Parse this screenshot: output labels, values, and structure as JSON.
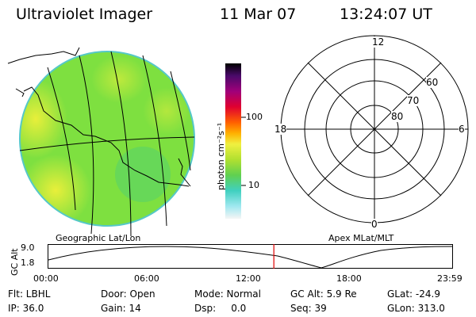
{
  "header": {
    "title": "Ultraviolet Imager",
    "date": "11 Mar 07",
    "time": "13:24:07 UT"
  },
  "colorbar": {
    "unit_label": "photon cm⁻²s⁻¹",
    "ticks": [
      "100",
      "10"
    ],
    "scale": "log"
  },
  "polar": {
    "mlt_labels": [
      "12",
      "18",
      "6",
      "0"
    ],
    "lat_labels": [
      "60",
      "70",
      "80"
    ],
    "caption": "Apex MLat/MLT"
  },
  "globe": {
    "caption": "Geographic Lat/Lon"
  },
  "altitude_plot": {
    "ylabel": "GC Alt",
    "yticks": [
      "9.0",
      "1.8"
    ],
    "xticks": [
      "00:00",
      "06:00",
      "12:00",
      "18:00",
      "23:59"
    ],
    "current_time_marker_hour": 13.4
  },
  "info": {
    "flt": "Flt: LBHL",
    "door": "Door: Open",
    "mode": "Mode: Normal",
    "gc_alt": "GC Alt: 5.9 Re",
    "glat": "GLat: -24.9",
    "ip": "IP: 36.0",
    "gain": "Gain: 14",
    "dsp": "Dsp:     0.0",
    "seq": "Seq: 39",
    "glon": "GLon: 313.0"
  },
  "colors": {
    "disk_green": "#7fe040",
    "disk_yellow": "#e0ef3a",
    "marker_red": "#e00000"
  }
}
